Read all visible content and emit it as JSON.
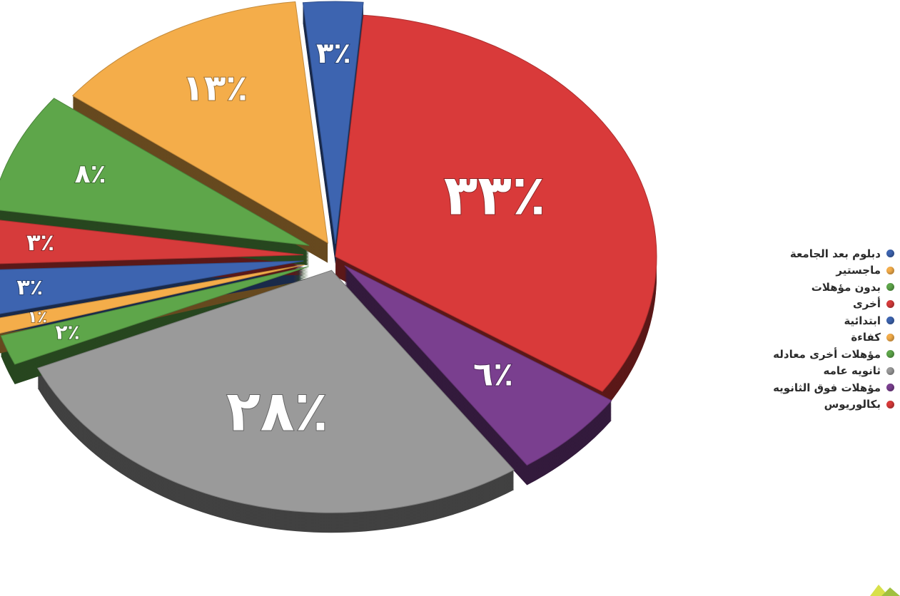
{
  "chart_data": {
    "type": "pie",
    "title": "",
    "slices": [
      {
        "label": "بكالوريوس",
        "value": 33,
        "display": "٣٣٪",
        "color": "#d93a3a"
      },
      {
        "label": "مؤهلات فوق الثانويه",
        "value": 6,
        "display": "٦٪",
        "color": "#7a3f8f"
      },
      {
        "label": "ثانويه عامه",
        "value": 28,
        "display": "٢٨٪",
        "color": "#9a9a9a"
      },
      {
        "label": "مؤهلات أخرى معادله",
        "value": 2,
        "display": "٢٪",
        "color": "#5ea64a"
      },
      {
        "label": "كفاءة",
        "value": 1,
        "display": "١٪",
        "color": "#f4ad4a"
      },
      {
        "label": "ابتدائية",
        "value": 3,
        "display": "٣٪",
        "color": "#3d64b0"
      },
      {
        "label": "أخرى",
        "value": 3,
        "display": "٣٪",
        "color": "#d63b3b"
      },
      {
        "label": "بدون مؤهلات",
        "value": 8,
        "display": "٨٪",
        "color": "#5ea64a"
      },
      {
        "label": "ماجستير",
        "value": 13,
        "display": "١٣٪",
        "color": "#f4ad4a"
      },
      {
        "label": "دبلوم بعد الجامعة",
        "value": 3,
        "display": "٣٪",
        "color": "#3d64b0"
      }
    ],
    "legend_position": "right",
    "legend_order": [
      "دبلوم بعد الجامعة",
      "ماجستير",
      "بدون مؤهلات",
      "أخرى",
      "ابتدائية",
      "كفاءة",
      "مؤهلات أخرى معادله",
      "ثانويه عامه",
      "مؤهلات فوق الثانويه",
      "بكالوريوس"
    ]
  }
}
